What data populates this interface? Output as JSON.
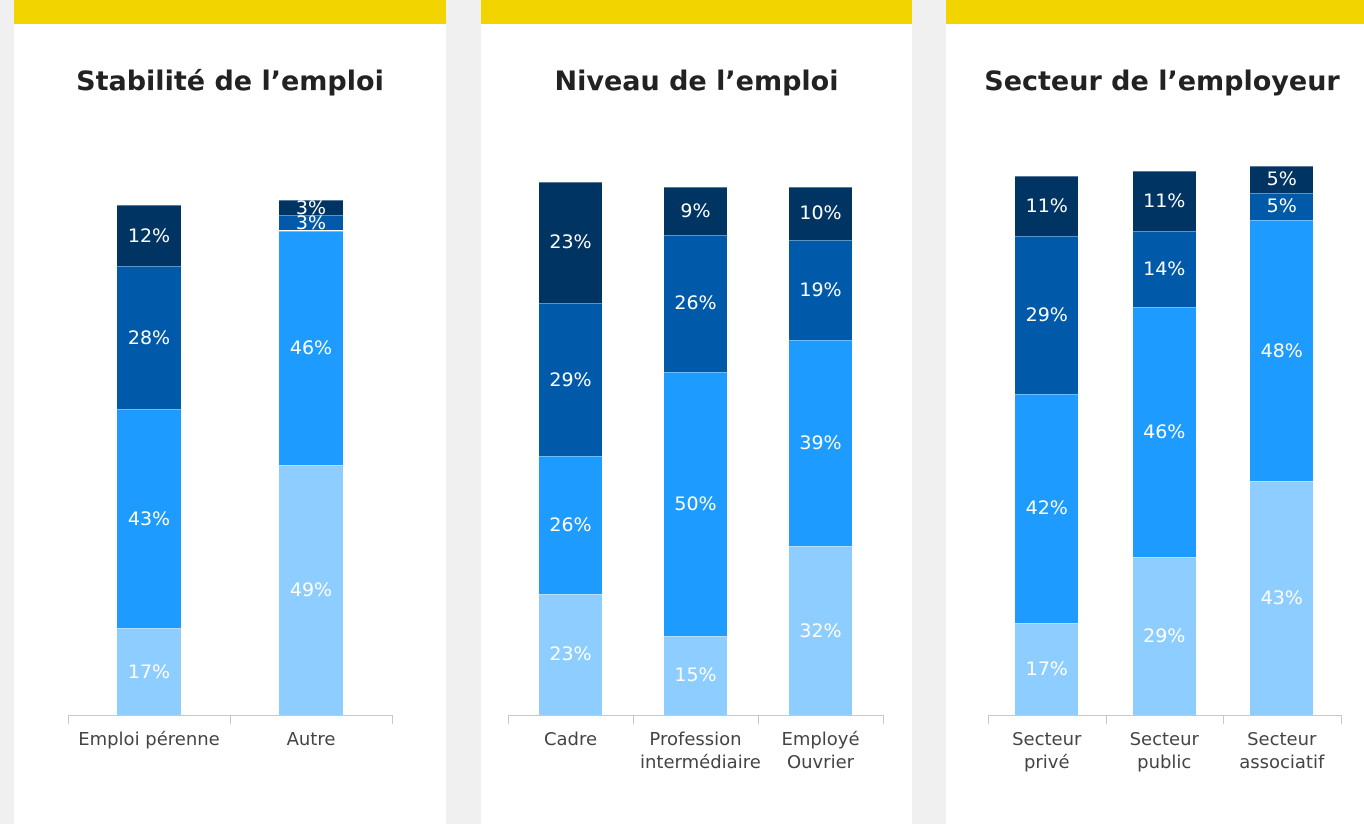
{
  "chart_data": [
    {
      "type": "stacked-bar",
      "title": "Stabilité de l’emploi",
      "categories": [
        "Emploi pérenne",
        "Autre"
      ],
      "series": [
        {
          "color": "#8ecdff",
          "values": [
            17,
            49
          ],
          "value_labels": [
            "17%",
            "49%"
          ]
        },
        {
          "color": "#1e9bff",
          "values": [
            43,
            46
          ],
          "value_labels": [
            "43%",
            "46%"
          ]
        },
        {
          "color": "#005aa9",
          "values": [
            28,
            3
          ],
          "value_labels": [
            "28%",
            "3%"
          ]
        },
        {
          "color": "#003463",
          "values": [
            12,
            3
          ],
          "value_labels": [
            "12%",
            "3%"
          ]
        }
      ]
    },
    {
      "type": "stacked-bar",
      "title": "Niveau de l’emploi",
      "categories": [
        "Cadre",
        "Profession intermédiaire",
        "Employé Ouvrier"
      ],
      "series": [
        {
          "color": "#8ecdff",
          "values": [
            23,
            15,
            32
          ],
          "value_labels": [
            "23%",
            "15%",
            "32%"
          ]
        },
        {
          "color": "#1e9bff",
          "values": [
            26,
            50,
            39
          ],
          "value_labels": [
            "26%",
            "50%",
            "39%"
          ]
        },
        {
          "color": "#005aa9",
          "values": [
            29,
            26,
            19
          ],
          "value_labels": [
            "29%",
            "26%",
            "19%"
          ]
        },
        {
          "color": "#003463",
          "values": [
            23,
            9,
            10
          ],
          "value_labels": [
            "23%",
            "9%",
            "10%"
          ]
        }
      ]
    },
    {
      "type": "stacked-bar",
      "title": "Secteur de l’employeur",
      "categories": [
        "Secteur privé",
        "Secteur public",
        "Secteur associatif"
      ],
      "series": [
        {
          "color": "#8ecdff",
          "values": [
            17,
            29,
            43
          ],
          "value_labels": [
            "17%",
            "29%",
            "43%"
          ]
        },
        {
          "color": "#1e9bff",
          "values": [
            42,
            46,
            48
          ],
          "value_labels": [
            "42%",
            "46%",
            "48%"
          ]
        },
        {
          "color": "#005aa9",
          "values": [
            29,
            14,
            5
          ],
          "value_labels": [
            "29%",
            "14%",
            "5%"
          ]
        },
        {
          "color": "#003463",
          "values": [
            11,
            11,
            5
          ],
          "value_labels": [
            "11%",
            "11%",
            "5%"
          ]
        }
      ]
    }
  ]
}
